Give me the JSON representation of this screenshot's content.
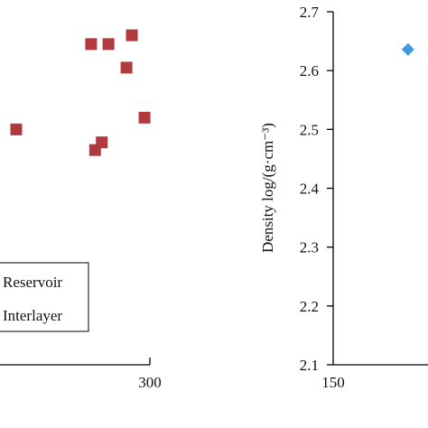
{
  "chart_data": [
    {
      "type": "scatter",
      "x_tick_labels": [
        "300"
      ],
      "series": [
        {
          "name": "Reservoir",
          "color": "#b03a3e",
          "marker": "square",
          "points": [
            [
              212,
              2.645
            ],
            [
              238,
              2.645
            ],
            [
              273,
              2.66
            ],
            [
              265,
              2.605
            ],
            [
              292,
              2.52
            ],
            [
              100,
              2.5
            ],
            [
              218,
              2.465
            ],
            [
              228,
              2.478
            ]
          ]
        },
        {
          "name": "Interlayer",
          "color": "#3d9ce0",
          "marker": "diamond",
          "points": []
        }
      ],
      "legend": {
        "location": "bottom-right",
        "entries": [
          "Reservoir",
          "Interlayer"
        ]
      }
    },
    {
      "type": "scatter",
      "ylabel": "Density log/(g·cm⁻³)",
      "y_tick_labels": [
        "2.1",
        "2.2",
        "2.3",
        "2.4",
        "2.5",
        "2.6",
        "2.7"
      ],
      "ylim": [
        2.1,
        2.7
      ],
      "x_tick_labels": [
        "150"
      ],
      "series": [
        {
          "name": "Interlayer",
          "color": "#3d9ce0",
          "marker": "diamond",
          "points": [
            [
              186,
              2.636
            ]
          ]
        }
      ]
    }
  ]
}
